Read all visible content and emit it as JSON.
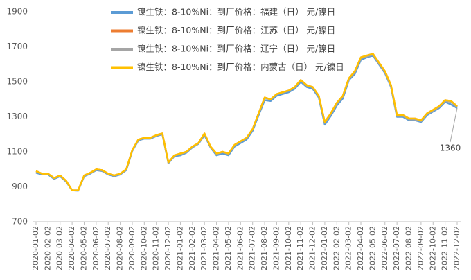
{
  "chart_data": {
    "type": "line",
    "categories": [
      "2020-01-02",
      null,
      "2020-02-02",
      null,
      "2020-03-02",
      null,
      "2020-04-02",
      null,
      "2020-05-02",
      null,
      "2020-06-02",
      null,
      "2020-07-02",
      null,
      "2020-08-02",
      null,
      "2020-09-02",
      null,
      "2020-10-02",
      null,
      "2020-11-02",
      null,
      "2020-12-02",
      null,
      "2021-01-02",
      null,
      "2021-02-02",
      null,
      "2021-03-02",
      null,
      "2021-04-02",
      null,
      "2021-05-02",
      null,
      "2021-06-02",
      null,
      "2021-07-02",
      null,
      "2021-08-02",
      null,
      "2021-09-02",
      null,
      "2021-10-02",
      null,
      "2021-11-02",
      null,
      "2021-12-02",
      null,
      "2022-01-02",
      null,
      "2022-02-02",
      null,
      "2022-03-02",
      null,
      "2022-04-02",
      null,
      "2022-05-02",
      null,
      "2022-06-02",
      null,
      "2022-07-02",
      null,
      "2022-08-02",
      null,
      "2022-09-02",
      null,
      "2022-10-02",
      null,
      "2022-11-02",
      null,
      "2022-12-02"
    ],
    "series": [
      {
        "name": "镍生铁：8-10%Ni：到厂价格：福建（日） 元/镍日",
        "color": "#5b9bd5",
        "values": [
          980,
          970,
          970,
          945,
          960,
          930,
          880,
          878,
          960,
          975,
          995,
          990,
          970,
          960,
          970,
          995,
          1105,
          1165,
          1175,
          1175,
          1190,
          1200,
          1035,
          1075,
          1080,
          1095,
          1125,
          1145,
          1195,
          1125,
          1080,
          1090,
          1080,
          1130,
          1150,
          1170,
          1220,
          1310,
          1395,
          1390,
          1420,
          1430,
          1440,
          1460,
          1500,
          1470,
          1460,
          1410,
          1255,
          1305,
          1365,
          1405,
          1510,
          1545,
          1625,
          1640,
          1650,
          1600,
          1550,
          1470,
          1300,
          1300,
          1280,
          1280,
          1270,
          1310,
          1330,
          1350,
          1385,
          1370,
          1350
        ]
      },
      {
        "name": "镍生铁：8-10%Ni：到厂价格：江苏（日） 元/镍日",
        "color": "#ed7d31",
        "values": [
          990,
          975,
          975,
          950,
          965,
          935,
          880,
          880,
          965,
          980,
          1000,
          995,
          975,
          965,
          975,
          1000,
          1110,
          1170,
          1180,
          1180,
          1195,
          1205,
          1040,
          1080,
          1090,
          1100,
          1130,
          1150,
          1205,
          1130,
          1090,
          1100,
          1090,
          1140,
          1160,
          1180,
          1230,
          1320,
          1410,
          1400,
          1430,
          1440,
          1450,
          1470,
          1510,
          1480,
          1470,
          1420,
          1270,
          1320,
          1380,
          1420,
          1520,
          1560,
          1640,
          1650,
          1660,
          1610,
          1560,
          1480,
          1310,
          1310,
          1290,
          1290,
          1280,
          1320,
          1340,
          1360,
          1395,
          1390,
          1360
        ]
      },
      {
        "name": "镍生铁：8-10%Ni：到厂价格：辽宁（日） 元/镍日",
        "color": "#a5a5a5",
        "values": [
          985,
          975,
          975,
          948,
          963,
          933,
          880,
          880,
          963,
          978,
          998,
          993,
          973,
          963,
          973,
          998,
          1108,
          1168,
          1178,
          1178,
          1193,
          1203,
          1038,
          1078,
          1088,
          1098,
          1128,
          1148,
          1203,
          1128,
          1088,
          1098,
          1088,
          1138,
          1158,
          1178,
          1228,
          1318,
          1408,
          1398,
          1428,
          1438,
          1448,
          1468,
          1508,
          1478,
          1468,
          1418,
          1265,
          1315,
          1375,
          1415,
          1515,
          1555,
          1635,
          1645,
          1655,
          1605,
          1555,
          1475,
          1305,
          1305,
          1285,
          1285,
          1275,
          1315,
          1335,
          1355,
          1390,
          1385,
          1355
        ]
      },
      {
        "name": "镍生铁：8-10%Ni：到厂价格：内蒙古（日） 元/镍日",
        "color": "#ffc000",
        "values": [
          990,
          975,
          975,
          950,
          965,
          935,
          880,
          880,
          965,
          980,
          1000,
          995,
          975,
          965,
          975,
          1000,
          1110,
          1170,
          1180,
          1180,
          1195,
          1205,
          1040,
          1080,
          1090,
          1100,
          1130,
          1150,
          1205,
          1130,
          1090,
          1100,
          1090,
          1140,
          1160,
          1180,
          1230,
          1320,
          1410,
          1400,
          1430,
          1440,
          1450,
          1470,
          1510,
          1480,
          1470,
          1420,
          1270,
          1320,
          1380,
          1420,
          1520,
          1560,
          1640,
          1650,
          1660,
          1610,
          1560,
          1480,
          1310,
          1310,
          1290,
          1290,
          1280,
          1320,
          1340,
          1360,
          1395,
          1390,
          1360
        ]
      }
    ],
    "annotation": "1360",
    "ylim": [
      700,
      1900
    ],
    "yticks": [
      700,
      900,
      1100,
      1300,
      1500,
      1700,
      1900
    ],
    "grid": false
  }
}
